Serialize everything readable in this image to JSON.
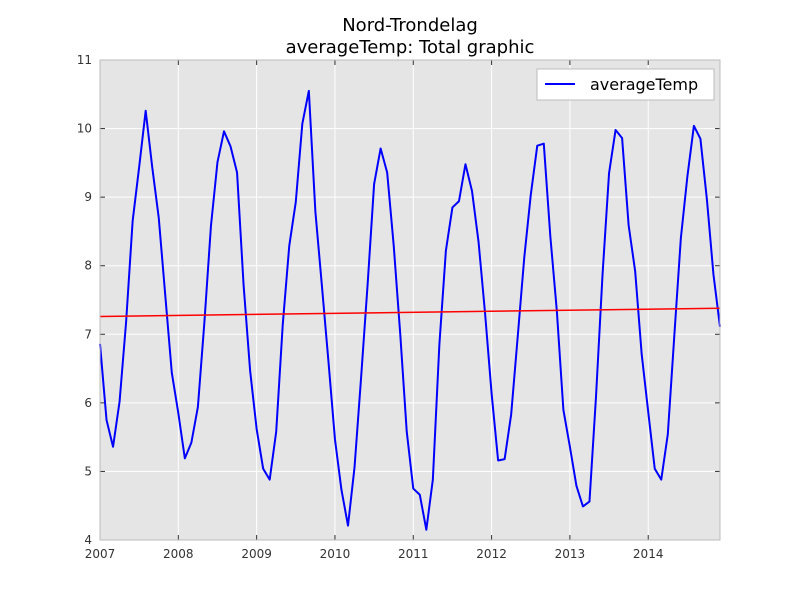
{
  "chart_data": {
    "type": "line",
    "title": "Nord-Trondelag",
    "subtitle": "averageTemp: Total graphic",
    "xlabel": "",
    "ylabel": "",
    "xlim": [
      2007.0,
      2014.9167
    ],
    "ylim": [
      4,
      11
    ],
    "grid": true,
    "legend_position": "top-right",
    "x_ticks": [
      "2007",
      "2008",
      "2009",
      "2010",
      "2011",
      "2012",
      "2013",
      "2014"
    ],
    "y_ticks": [
      "4",
      "5",
      "6",
      "7",
      "8",
      "9",
      "10",
      "11"
    ],
    "series": [
      {
        "name": "averageTemp",
        "color": "#0000ff",
        "values": [
          6.86,
          5.75,
          5.36,
          6.02,
          7.18,
          8.65,
          9.44,
          10.26,
          9.44,
          8.7,
          7.57,
          6.44,
          5.85,
          5.19,
          5.42,
          5.94,
          7.18,
          8.58,
          9.51,
          9.96,
          9.74,
          9.36,
          7.72,
          6.47,
          5.62,
          5.04,
          4.88,
          5.58,
          7.14,
          8.29,
          8.93,
          10.07,
          10.55,
          8.79,
          7.71,
          6.61,
          5.47,
          4.73,
          4.21,
          5.06,
          6.36,
          7.72,
          9.19,
          9.71,
          9.36,
          8.3,
          7.01,
          5.58,
          4.75,
          4.66,
          4.15,
          4.88,
          6.85,
          8.22,
          8.85,
          8.94,
          9.48,
          9.09,
          8.35,
          7.31,
          6.14,
          5.16,
          5.18,
          5.83,
          6.96,
          8.11,
          9.03,
          9.75,
          9.78,
          8.43,
          7.34,
          5.9,
          5.36,
          4.79,
          4.49,
          4.56,
          6.09,
          7.87,
          9.35,
          9.98,
          9.86,
          8.59,
          7.92,
          6.71,
          5.87,
          5.04,
          4.88,
          5.54,
          6.98,
          8.4,
          9.3,
          10.04,
          9.85,
          8.96,
          7.87,
          7.11
        ]
      },
      {
        "name": "",
        "color": "#ff0000",
        "values": [
          7.26,
          7.38
        ]
      }
    ]
  }
}
